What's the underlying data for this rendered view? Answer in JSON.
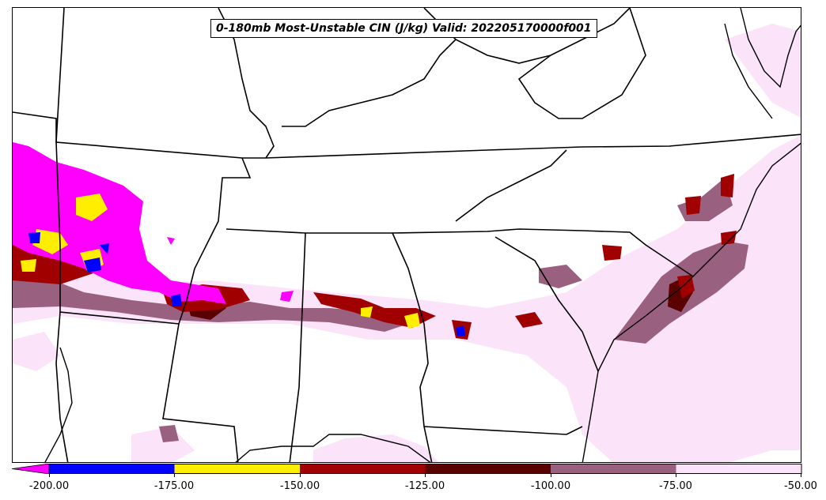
{
  "map": {
    "title": "0-180mb Most-Unstable CIN (J/kg) Valid: 202205170000f001",
    "field": "0-180mb Most-Unstable CIN",
    "units": "J/kg",
    "region": "Southeastern United States",
    "colors": {
      "background": "#ffffff",
      "boundaries": "#000000",
      "level_below_200": "#ff00ff",
      "level_200_175": "#0000ff",
      "level_175_150": "#ffee00",
      "level_150_125": "#a00000",
      "level_125_100": "#5a0000",
      "level_100_75": "#9a6080",
      "level_75_50": "#fbe3fa"
    }
  },
  "colorbar": {
    "extend": "min",
    "ticks": [
      "-200.00",
      "-175.00",
      "-150.00",
      "-125.00",
      "-100.00",
      "-75.00",
      "-50.00"
    ],
    "bins": [
      {
        "range": "< -200",
        "color": "#ff00ff"
      },
      {
        "range": "-200 to -175",
        "color": "#0000ff"
      },
      {
        "range": "-175 to -150",
        "color": "#ffee00"
      },
      {
        "range": "-150 to -125",
        "color": "#a00000"
      },
      {
        "range": "-125 to -100",
        "color": "#5a0000"
      },
      {
        "range": "-100 to -75",
        "color": "#9a6080"
      },
      {
        "range": "-75 to -50",
        "color": "#fbe3fa"
      }
    ]
  }
}
